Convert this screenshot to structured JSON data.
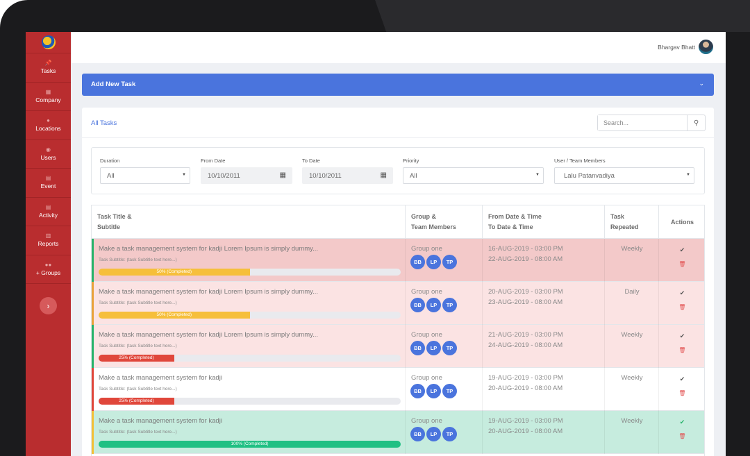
{
  "user": {
    "name": "Bhargav Bhatt"
  },
  "sidebar": {
    "items": [
      {
        "label": "Tasks",
        "icon": "pin-icon",
        "glyph": "📌"
      },
      {
        "label": "Company",
        "icon": "building-icon",
        "glyph": "▦"
      },
      {
        "label": "Locations",
        "icon": "map-marker-icon",
        "glyph": "●"
      },
      {
        "label": "Users",
        "icon": "user-icon",
        "glyph": "◉"
      },
      {
        "label": "Event",
        "icon": "calendar-icon",
        "glyph": "▤"
      },
      {
        "label": "Activity",
        "icon": "calendar-icon",
        "glyph": "▤"
      },
      {
        "label": "Reports",
        "icon": "document-icon",
        "glyph": "▥"
      },
      {
        "label": "+ Groups",
        "icon": "users-icon",
        "glyph": "●●"
      }
    ],
    "toggle_icon": "chevron-right-icon",
    "toggle_glyph": "›"
  },
  "add_task": {
    "label": "Add New Task",
    "chevron_glyph": "⌄"
  },
  "tasks_panel": {
    "title": "All Tasks",
    "search": {
      "placeholder": "Search...",
      "icon_glyph": "⚲"
    }
  },
  "filters": {
    "duration": {
      "label": "Duration",
      "value": "All"
    },
    "from_date": {
      "label": "From Date",
      "value": "10/10/2011"
    },
    "to_date": {
      "label": "To Date",
      "value": "10/10/2011"
    },
    "priority": {
      "label": "Priority",
      "value": "All"
    },
    "members": {
      "label": "User / Team Members",
      "value": "Lalu Patanvadiya"
    },
    "caret_glyph": "▼",
    "calendar_glyph": "▦"
  },
  "table": {
    "headers": [
      [
        "Task Title &",
        "Subtitle"
      ],
      [
        "Group &",
        "Team Members"
      ],
      [
        "From Date & Time",
        "To Date & Time"
      ],
      [
        "Task",
        "Repeated"
      ],
      [
        "Actions",
        ""
      ]
    ],
    "check_glyph": "✔",
    "trash_glyph": "🗑",
    "rows": [
      {
        "title": "Make a task management system for kadji Lorem Ipsum is simply dummy...",
        "subtitle": "Task Subtitle: (task Subtitle text here...)",
        "progress": 0.5,
        "progress_label": "50% (Completed)",
        "progress_color": "#f6bf3b",
        "group": "Group one",
        "members": [
          "BB",
          "LP",
          "TP"
        ],
        "from": "16-AUG-2019 - 03:00 PM",
        "to": "22-AUG-2019 - 08:00 AM",
        "repeated": "Weekly",
        "row_color": "#f3c9c9",
        "accent_color": "#27b36a",
        "check_color": "#555555"
      },
      {
        "title": "Make a task management system for kadji Lorem Ipsum is simply dummy...",
        "subtitle": "Task Subtitle: (task Subtitle text here...)",
        "progress": 0.5,
        "progress_label": "50% (Completed)",
        "progress_color": "#f6bf3b",
        "group": "Group one",
        "members": [
          "BB",
          "LP",
          "TP"
        ],
        "from": "20-AUG-2019 - 03:00 PM",
        "to": "23-AUG-2019 - 08:00 AM",
        "repeated": "Daily",
        "row_color": "#fbe3e3",
        "accent_color": "#e9a23b",
        "check_color": "#555555"
      },
      {
        "title": "Make a task management system for kadji Lorem Ipsum is simply dummy...",
        "subtitle": "Task Subtitle: (task Subtitle text here...)",
        "progress": 0.25,
        "progress_label": "25% (Completed)",
        "progress_color": "#e0473b",
        "group": "Group one",
        "members": [
          "BB",
          "LP",
          "TP"
        ],
        "from": "21-AUG-2019 - 03:00 PM",
        "to": "24-AUG-2019 - 08:00 AM",
        "repeated": "Weekly",
        "row_color": "#fbe3e3",
        "accent_color": "#27b36a",
        "check_color": "#555555"
      },
      {
        "title": "Make a task management system for kadji",
        "subtitle": "Task Subtitle: (task Subtitle text here...)",
        "progress": 0.25,
        "progress_label": "25% (Completed)",
        "progress_color": "#e0473b",
        "group": "Group one",
        "members": [
          "BB",
          "LP",
          "TP"
        ],
        "from": "19-AUG-2019 - 03:00 PM",
        "to": "20-AUG-2019 - 08:00 AM",
        "repeated": "Weekly",
        "row_color": "#ffffff",
        "accent_color": "#e0473b",
        "check_color": "#555555"
      },
      {
        "title": "Make a task management system for kadji",
        "subtitle": "Task Subtitle: (task Subtitle text here...)",
        "progress": 1.0,
        "progress_label": "100% (Completed)",
        "progress_color": "#20c083",
        "group": "Group one",
        "members": [
          "BB",
          "LP",
          "TP"
        ],
        "from": "19-AUG-2019 - 03:00 PM",
        "to": "20-AUG-2019 - 08:00 AM",
        "repeated": "Weekly",
        "row_color": "#c6ecde",
        "accent_color": "#f2c037",
        "check_color": "#27b36a"
      }
    ]
  }
}
